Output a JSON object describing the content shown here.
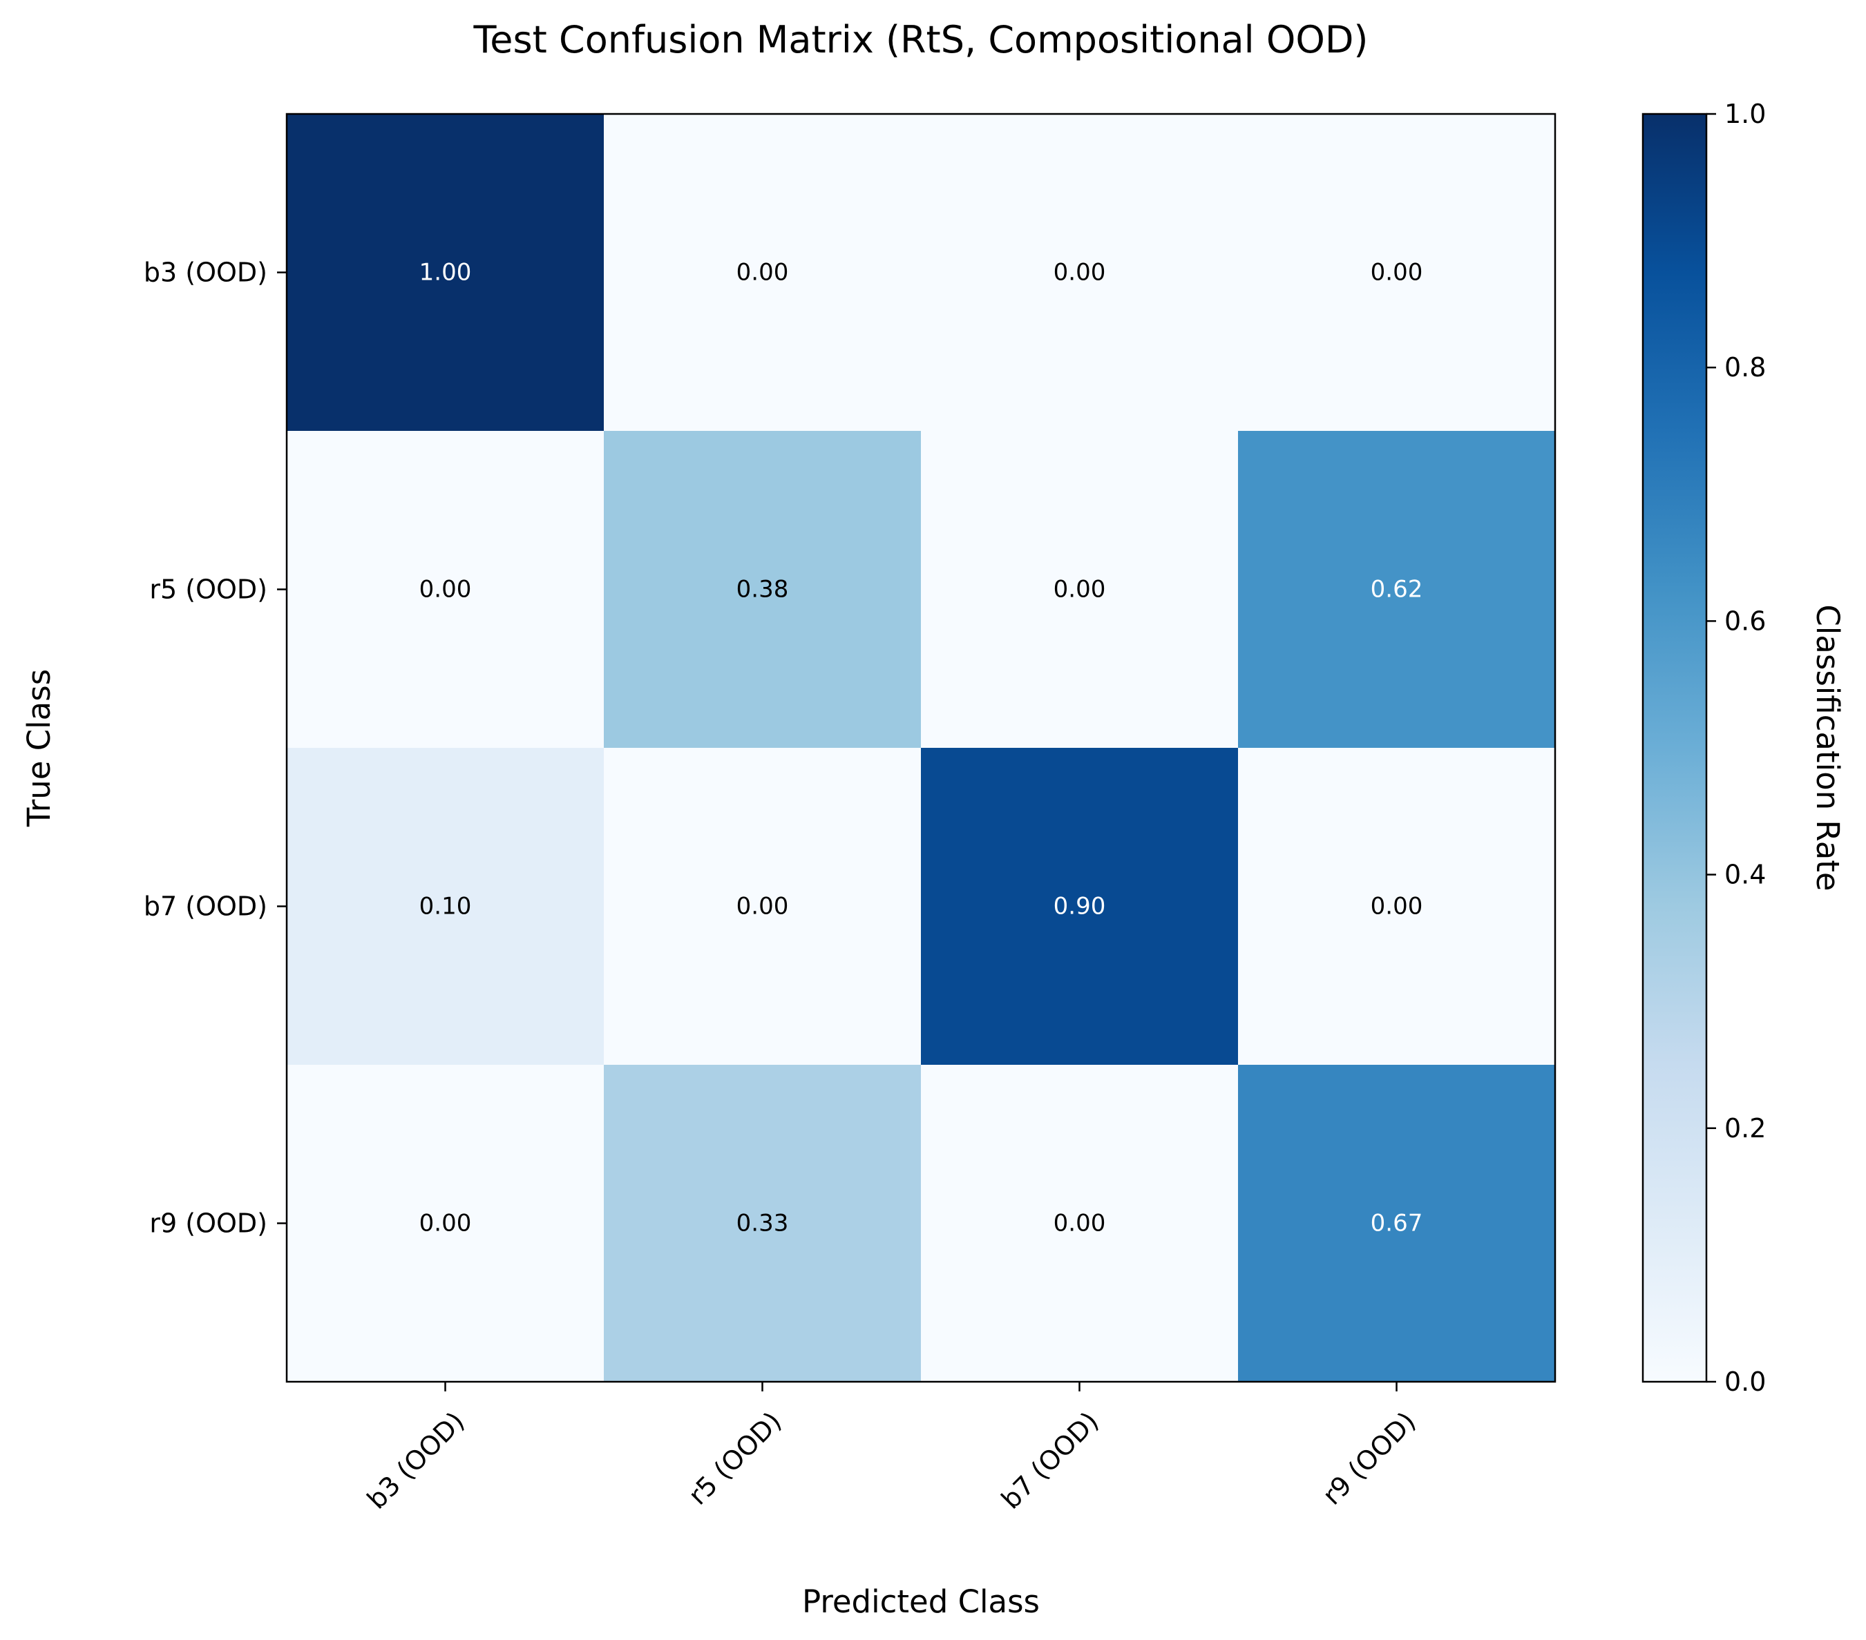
{
  "chart_data": {
    "type": "heatmap",
    "title": "Test Confusion Matrix (RtS, Compositional OOD)",
    "xlabel": "Predicted Class",
    "ylabel": "True Class",
    "x_categories": [
      "b3 (OOD)",
      "r5 (OOD)",
      "b7 (OOD)",
      "r9 (OOD)"
    ],
    "y_categories": [
      "b3 (OOD)",
      "r5 (OOD)",
      "b7 (OOD)",
      "r9 (OOD)"
    ],
    "values": [
      [
        1.0,
        0.0,
        0.0,
        0.0
      ],
      [
        0.0,
        0.38,
        0.0,
        0.62
      ],
      [
        0.1,
        0.0,
        0.9,
        0.0
      ],
      [
        0.0,
        0.33,
        0.0,
        0.67
      ]
    ],
    "cell_labels": [
      [
        "1.00",
        "0.00",
        "0.00",
        "0.00"
      ],
      [
        "0.00",
        "0.38",
        "0.00",
        "0.62"
      ],
      [
        "0.10",
        "0.00",
        "0.90",
        "0.00"
      ],
      [
        "0.00",
        "0.33",
        "0.00",
        "0.67"
      ]
    ],
    "colormap": "Blues",
    "vmin": 0.0,
    "vmax": 1.0,
    "colorbar": {
      "label": "Classification Rate",
      "ticks": [
        0.0,
        0.2,
        0.4,
        0.6,
        0.8,
        1.0
      ],
      "tick_labels": [
        "0.0",
        "0.2",
        "0.4",
        "0.6",
        "0.8",
        "1.0"
      ]
    },
    "grid": false,
    "label_color_light": "#ffffff",
    "label_color_dark": "#000000"
  }
}
